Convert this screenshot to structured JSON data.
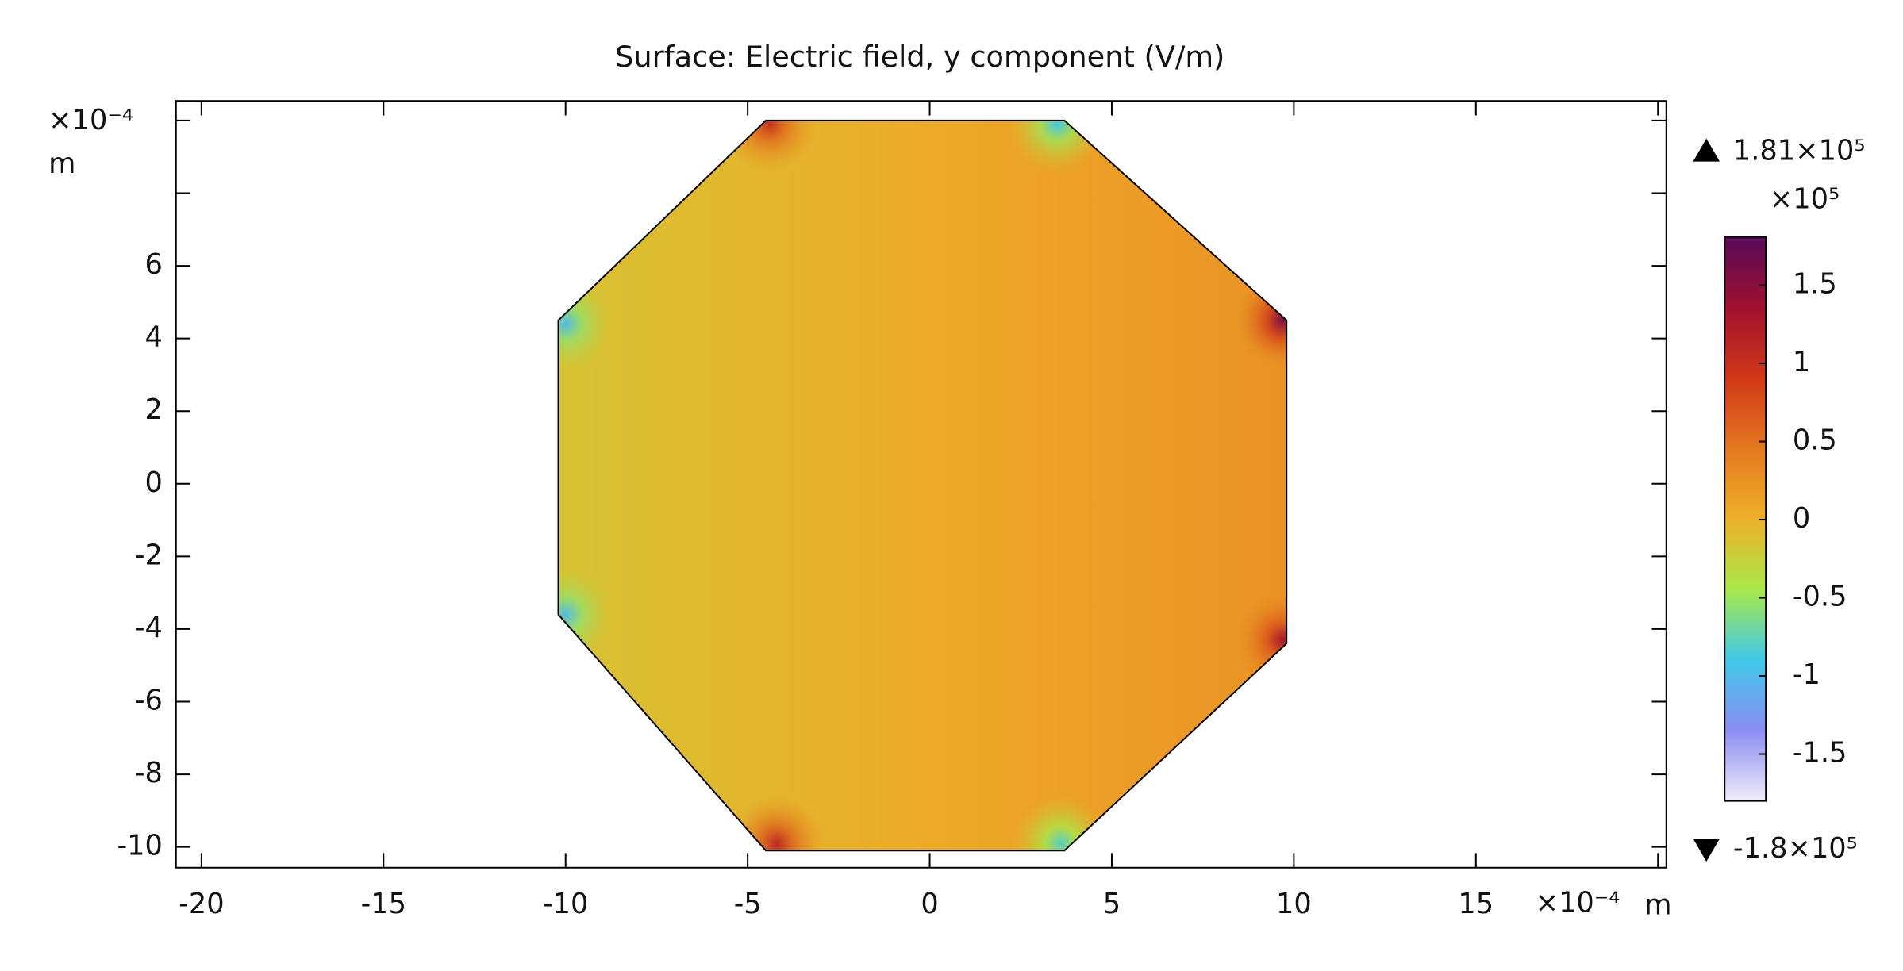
{
  "chart_data": {
    "type": "surface",
    "title": "Surface: Electric field, y component (V/m)",
    "x_multiplier": "×10⁻⁴",
    "x_unit": "m",
    "y_multiplier": "×10⁻⁴",
    "y_unit": "m",
    "xlim": [
      -20.7,
      20.23
    ],
    "ylim": [
      -10.57,
      10.54
    ],
    "xticks": [
      -20,
      -15,
      -10,
      -5,
      0,
      5,
      10,
      15,
      {
        "value": 20,
        "label": null
      }
    ],
    "yticks": [
      -10,
      -8,
      -6,
      -4,
      -2,
      0,
      2,
      4,
      6,
      {
        "value": 8,
        "label": null
      },
      {
        "value": 10,
        "label": null
      }
    ],
    "boundary": {
      "x": [
        -4.5,
        3.7,
        9.8,
        9.8,
        3.7,
        -4.5,
        -10.2,
        -10.2
      ],
      "y": [
        10,
        10,
        4.5,
        -4.4,
        -10.1,
        -10.1,
        -3.6,
        4.5
      ]
    },
    "surface_gradient": {
      "x": [
        -10.2,
        0,
        9.8
      ],
      "values": [
        -0.15,
        0.05,
        0.25
      ]
    },
    "hotspots": [
      {
        "x": -4.4,
        "y": 9.9,
        "value": 1.0
      },
      {
        "x": 3.5,
        "y": 9.9,
        "value": -0.9
      },
      {
        "x": 9.7,
        "y": 4.5,
        "value": 1.6
      },
      {
        "x": 9.7,
        "y": -4.3,
        "value": 1.3
      },
      {
        "x": 3.6,
        "y": -9.9,
        "value": -0.8
      },
      {
        "x": -4.2,
        "y": -9.9,
        "value": 1.1
      },
      {
        "x": -10.0,
        "y": -3.6,
        "value": -1.0
      },
      {
        "x": -10.0,
        "y": 4.4,
        "value": -1.0
      }
    ],
    "colorbar": {
      "max": {
        "value": 1.81,
        "label": "1.81×10⁵"
      },
      "min": {
        "value": -1.8,
        "label": "-1.8×10⁵"
      },
      "multiplier": "×10⁵",
      "ticks": [
        -1.5,
        -1,
        -0.5,
        0,
        0.5,
        1,
        1.5
      ],
      "colormap": [
        "#f0ecf8",
        "#8a8cf2",
        "#40c8e8",
        "#a8e848",
        "#eeb028",
        "#e47820",
        "#d03818",
        "#a01030",
        "#580a58"
      ]
    }
  }
}
